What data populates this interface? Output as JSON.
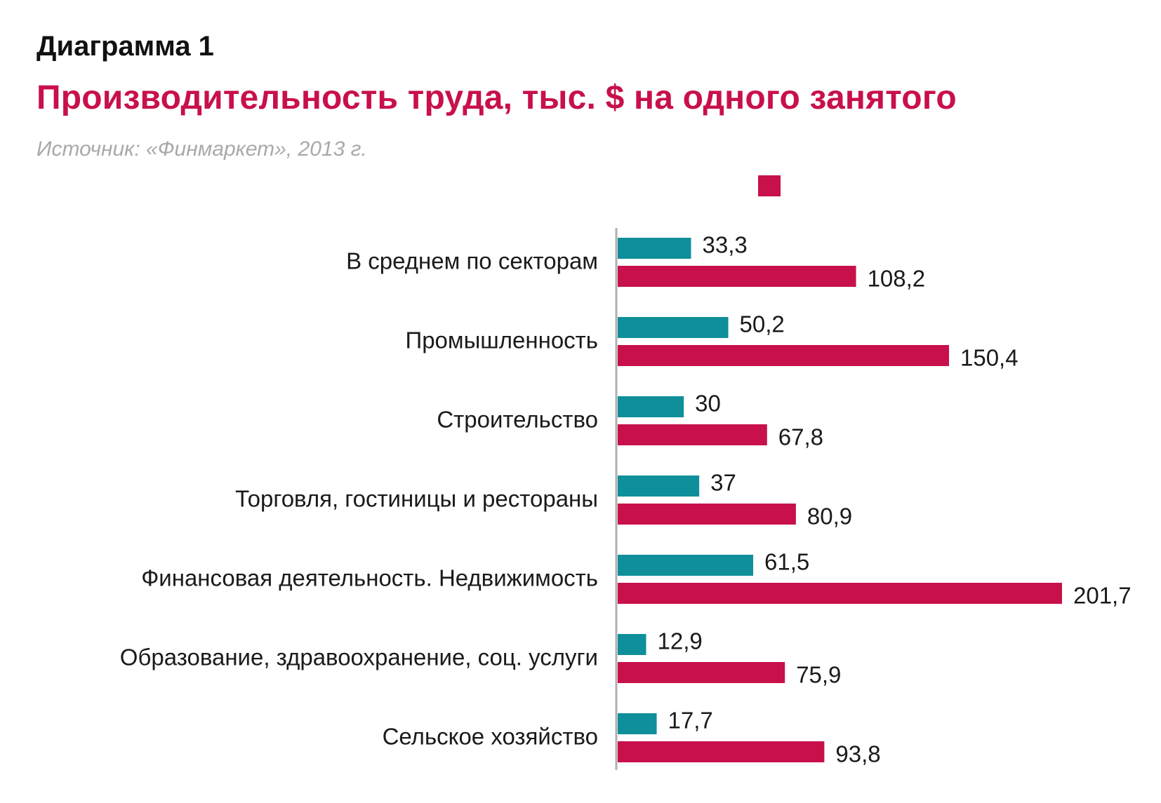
{
  "header": {
    "kicker": "Диаграмма 1",
    "title": "Производительность труда, тыс. $ на одного занятого",
    "source": "Источник: «Финмаркет», 2013 г."
  },
  "colors": {
    "series1": "#0f8f9a",
    "series2": "#c8104a",
    "axis": "#b0b0b0"
  },
  "chart_data": {
    "type": "bar",
    "orientation": "horizontal",
    "categories": [
      "В среднем по секторам",
      "Промышленность",
      "Строительство",
      "Торговля, гостиницы и рестораны",
      "Финансовая деятельность. Недвижимость",
      "Образование, здравоохранение, соц. услуги",
      "Сельское хозяйство"
    ],
    "series": [
      {
        "values": [
          33.3,
          50.2,
          30,
          37,
          61.5,
          12.9,
          17.7
        ],
        "labels": [
          "33,3",
          "50,2",
          "30",
          "37",
          "61,5",
          "12,9",
          "17,7"
        ],
        "color": "#0f8f9a"
      },
      {
        "values": [
          108.2,
          150.4,
          67.8,
          80.9,
          201.7,
          75.9,
          93.8
        ],
        "labels": [
          "108,2",
          "150,4",
          "67,8",
          "80,9",
          "201,7",
          "75,9",
          "93,8"
        ],
        "color": "#c8104a"
      }
    ],
    "xlim": [
      0,
      201.7
    ],
    "grid": false,
    "legend": "top"
  }
}
